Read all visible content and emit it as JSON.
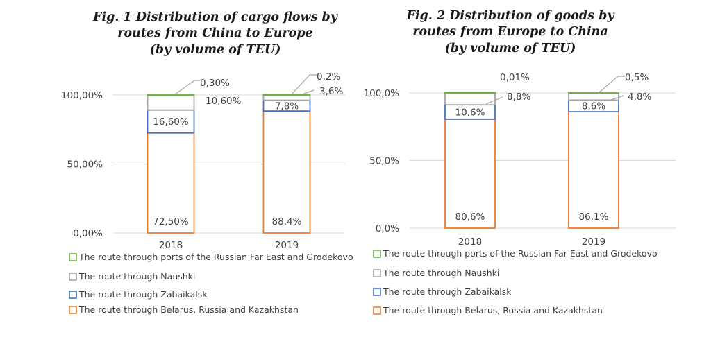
{
  "colors": {
    "belarus_russia_kazakhstan": "#ED7D31",
    "zabaikalsk": "#4472C4",
    "naushki": "#A5A5A5",
    "far_east_grodekovo": "#70AD47"
  },
  "chart_data": [
    {
      "type": "bar",
      "stacked": true,
      "title": "Fig. 1 Distribution of cargo flows by routes from China to Europe (by volume of TEU)",
      "title_lines": [
        "Fig. 1 Distribution of cargo flows by",
        "routes from China to Europe",
        "(by volume of TEU)"
      ],
      "categories": [
        "2018",
        "2019"
      ],
      "ylim": [
        0,
        100
      ],
      "yticks": [
        0,
        50,
        100
      ],
      "ytick_labels": [
        "0,00%",
        "50,00%",
        "100,00%"
      ],
      "grid": true,
      "legend_position": "bottom",
      "series": [
        {
          "name": "The route through Belarus, Russia and Kazakhstan",
          "color_key": "belarus_russia_kazakhstan",
          "values": [
            72.5,
            88.4
          ],
          "labels": [
            "72,50%",
            "88,4%"
          ]
        },
        {
          "name": "The route through Zabaikalsk",
          "color_key": "zabaikalsk",
          "values": [
            16.6,
            7.8
          ],
          "labels": [
            "16,60%",
            "7,8%"
          ]
        },
        {
          "name": "The route through Naushki",
          "color_key": "naushki",
          "values": [
            10.6,
            3.6
          ],
          "labels": [
            "10,60%",
            "3,6%"
          ]
        },
        {
          "name": "The route through ports of the Russian Far East and Grodekovo",
          "color_key": "far_east_grodekovo",
          "values": [
            0.3,
            0.2
          ],
          "labels": [
            "0,30%",
            "0,2%"
          ]
        }
      ]
    },
    {
      "type": "bar",
      "stacked": true,
      "title": "Fig. 2 Distribution of goods by routes from Europe to China (by volume of TEU)",
      "title_lines": [
        "Fig. 2 Distribution of goods by",
        "routes  from Europe to China",
        "(by volume of TEU)"
      ],
      "categories": [
        "2018",
        "2019"
      ],
      "ylim": [
        0,
        100
      ],
      "yticks": [
        0,
        50,
        100
      ],
      "ytick_labels": [
        "0,0%",
        "50,0%",
        "100,0%"
      ],
      "grid": true,
      "legend_position": "bottom",
      "series": [
        {
          "name": "The route through Belarus, Russia and Kazakhstan",
          "color_key": "belarus_russia_kazakhstan",
          "values": [
            80.6,
            86.1
          ],
          "labels": [
            "80,6%",
            "86,1%"
          ]
        },
        {
          "name": "The route through Zabaikalsk",
          "color_key": "zabaikalsk",
          "values": [
            10.6,
            8.6
          ],
          "labels": [
            "10,6%",
            "8,6%"
          ]
        },
        {
          "name": "The route through Naushki",
          "color_key": "naushki",
          "values": [
            8.8,
            4.8
          ],
          "labels": [
            "8,8%",
            "4,8%"
          ]
        },
        {
          "name": "The route through ports of the Russian Far East and Grodekovo",
          "color_key": "far_east_grodekovo",
          "values": [
            0.01,
            0.5
          ],
          "labels": [
            "0,01%",
            "0,5%"
          ]
        }
      ]
    }
  ]
}
